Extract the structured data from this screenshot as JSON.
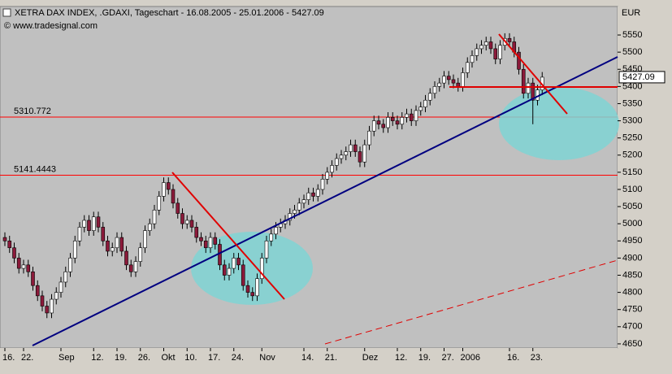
{
  "chart_data": {
    "type": "candlestick",
    "title": "XETRA DAX INDEX, .GDAXI, Tageschart - 16.08.2005 - 25.01.2006 - 5427.09",
    "source": "© www.tradesignal.com",
    "y_axis_label": "EUR",
    "categories": [
      "16.",
      null,
      null,
      null,
      "22.",
      null,
      null,
      null,
      null,
      null,
      null,
      null,
      "Sep",
      null,
      null,
      null,
      null,
      null,
      null,
      "12.",
      null,
      null,
      null,
      null,
      "19.",
      null,
      null,
      null,
      null,
      "26.",
      null,
      null,
      null,
      null,
      "Okt",
      null,
      null,
      null,
      null,
      "10.",
      null,
      null,
      null,
      null,
      "17.",
      null,
      null,
      null,
      null,
      "24.",
      null,
      null,
      null,
      null,
      null,
      "Nov",
      null,
      null,
      null,
      null,
      null,
      null,
      null,
      null,
      "14.",
      null,
      null,
      null,
      null,
      "21.",
      null,
      null,
      null,
      null,
      null,
      null,
      null,
      "Dez",
      null,
      null,
      null,
      null,
      null,
      null,
      "12.",
      null,
      null,
      null,
      null,
      "19.",
      null,
      null,
      null,
      null,
      "27.",
      null,
      null,
      null,
      "2006",
      null,
      null,
      null,
      null,
      null,
      null,
      null,
      null,
      null,
      "16.",
      null,
      null,
      null,
      null,
      "23.",
      null,
      null
    ],
    "open": [
      4960,
      4950,
      4930,
      4900,
      4870,
      4880,
      4860,
      4820,
      4790,
      4760,
      4740,
      4780,
      4800,
      4830,
      4860,
      4900,
      4950,
      4990,
      5010,
      4980,
      5020,
      4990,
      4950,
      4920,
      4930,
      4960,
      4920,
      4880,
      4860,
      4890,
      4930,
      4980,
      5000,
      5040,
      5080,
      5120,
      5100,
      5060,
      5030,
      5000,
      5010,
      4990,
      4960,
      4950,
      4930,
      4960,
      4940,
      4880,
      4850,
      4870,
      4900,
      4880,
      4820,
      4800,
      4790,
      4840,
      4900,
      4950,
      4970,
      4990,
      5000,
      5010,
      5030,
      5040,
      5060,
      5070,
      5090,
      5080,
      5100,
      5130,
      5150,
      5170,
      5190,
      5200,
      5210,
      5230,
      5210,
      5180,
      5230,
      5270,
      5300,
      5290,
      5280,
      5310,
      5300,
      5290,
      5310,
      5320,
      5300,
      5330,
      5340,
      5360,
      5380,
      5400,
      5410,
      5430,
      5420,
      5410,
      5400,
      5440,
      5470,
      5490,
      5510,
      5520,
      5530,
      5510,
      5480,
      5520,
      5540,
      5530,
      5500,
      5450,
      5380,
      5410,
      5360,
      5390
    ],
    "high": [
      4975,
      4965,
      4945,
      4915,
      4895,
      4895,
      4875,
      4835,
      4805,
      4775,
      4795,
      4815,
      4845,
      4875,
      4915,
      4965,
      5005,
      5025,
      5025,
      5035,
      5035,
      5005,
      4965,
      4945,
      4975,
      4975,
      4935,
      4895,
      4905,
      4945,
      4995,
      5015,
      5055,
      5095,
      5135,
      5135,
      5115,
      5075,
      5045,
      5025,
      5025,
      5005,
      4975,
      4965,
      4975,
      4975,
      4955,
      4895,
      4885,
      4915,
      4915,
      4895,
      4835,
      4815,
      4855,
      4915,
      4965,
      4985,
      5005,
      5015,
      5025,
      5045,
      5055,
      5075,
      5085,
      5105,
      5105,
      5115,
      5145,
      5165,
      5185,
      5205,
      5215,
      5225,
      5245,
      5245,
      5225,
      5245,
      5285,
      5315,
      5315,
      5305,
      5325,
      5325,
      5315,
      5325,
      5335,
      5335,
      5345,
      5355,
      5375,
      5395,
      5415,
      5425,
      5445,
      5445,
      5435,
      5425,
      5455,
      5485,
      5505,
      5525,
      5535,
      5545,
      5545,
      5525,
      5535,
      5555,
      5555,
      5545,
      5515,
      5465,
      5425,
      5425,
      5405,
      5442.09
    ],
    "low": [
      4935,
      4915,
      4885,
      4855,
      4855,
      4845,
      4805,
      4775,
      4745,
      4725,
      4725,
      4765,
      4785,
      4815,
      4845,
      4885,
      4935,
      4975,
      4965,
      4965,
      4975,
      4935,
      4905,
      4905,
      4915,
      4905,
      4865,
      4845,
      4845,
      4875,
      4915,
      4965,
      4985,
      5025,
      5065,
      5085,
      5045,
      5015,
      4985,
      4985,
      4975,
      4945,
      4935,
      4915,
      4915,
      4925,
      4865,
      4835,
      4835,
      4855,
      4865,
      4805,
      4785,
      4775,
      4775,
      4825,
      4885,
      4935,
      4955,
      4975,
      4985,
      4995,
      5015,
      5025,
      5045,
      5055,
      5065,
      5065,
      5085,
      5115,
      5135,
      5155,
      5175,
      5185,
      5195,
      5195,
      5165,
      5165,
      5215,
      5255,
      5275,
      5265,
      5265,
      5285,
      5275,
      5275,
      5295,
      5285,
      5285,
      5315,
      5325,
      5345,
      5365,
      5385,
      5395,
      5405,
      5395,
      5385,
      5385,
      5425,
      5455,
      5475,
      5495,
      5505,
      5495,
      5465,
      5465,
      5505,
      5515,
      5485,
      5435,
      5365,
      5365,
      5290,
      5345,
      5375
    ],
    "close": [
      4950,
      4930,
      4900,
      4870,
      4880,
      4860,
      4820,
      4790,
      4760,
      4740,
      4780,
      4800,
      4830,
      4860,
      4900,
      4950,
      4990,
      5010,
      4980,
      5020,
      4990,
      4950,
      4920,
      4930,
      4960,
      4920,
      4880,
      4860,
      4890,
      4930,
      4980,
      5000,
      5040,
      5080,
      5120,
      5100,
      5060,
      5030,
      5000,
      5010,
      4990,
      4960,
      4950,
      4930,
      4960,
      4940,
      4880,
      4850,
      4870,
      4900,
      4880,
      4820,
      4800,
      4790,
      4840,
      4900,
      4950,
      4970,
      4990,
      5000,
      5010,
      5030,
      5040,
      5060,
      5070,
      5090,
      5080,
      5100,
      5130,
      5150,
      5170,
      5190,
      5200,
      5210,
      5230,
      5210,
      5180,
      5230,
      5270,
      5300,
      5290,
      5280,
      5310,
      5300,
      5290,
      5310,
      5320,
      5300,
      5330,
      5340,
      5360,
      5380,
      5400,
      5410,
      5430,
      5420,
      5410,
      5400,
      5440,
      5470,
      5490,
      5510,
      5520,
      5530,
      5510,
      5480,
      5520,
      5540,
      5530,
      5500,
      5450,
      5380,
      5410,
      5360,
      5390,
      5427.09
    ],
    "up_color": "#ffffff",
    "down_color": "#8b1a3a",
    "ylim": [
      4638,
      5633
    ],
    "yticks": [
      4650,
      4700,
      4750,
      4800,
      4850,
      4900,
      4950,
      5000,
      5050,
      5100,
      5150,
      5200,
      5250,
      5300,
      5350,
      5400,
      5450,
      5500,
      5550
    ],
    "levels": [
      5310.772,
      5141.4443
    ],
    "level_color": "#ff0000"
  }
}
